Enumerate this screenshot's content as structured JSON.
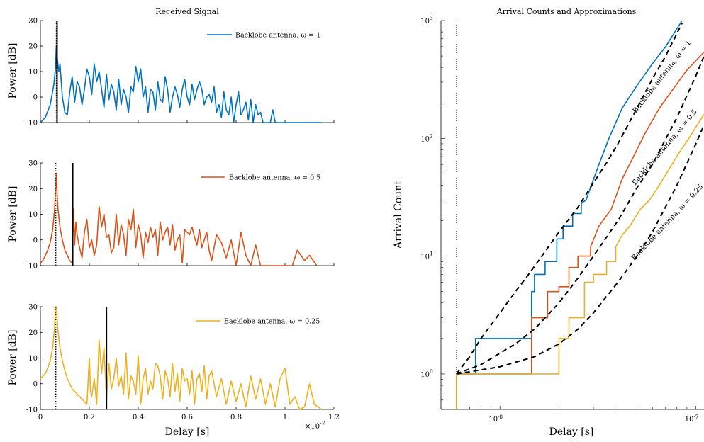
{
  "left": {
    "title": "Received Signal",
    "xlabel": "Delay [s]",
    "ylabel": "Power [dB]",
    "x_exponent_label": "×10",
    "x_exponent_power": "-7",
    "xticks": [
      {
        "v": 0,
        "label": "0"
      },
      {
        "v": 0.2,
        "label": "0.2"
      },
      {
        "v": 0.4,
        "label": "0.4"
      },
      {
        "v": 0.6,
        "label": "0.6"
      },
      {
        "v": 0.8,
        "label": "0.8"
      },
      {
        "v": 1.0,
        "label": "1"
      },
      {
        "v": 1.2,
        "label": "1.2"
      }
    ],
    "yticks": [
      {
        "v": -10,
        "label": "-10"
      },
      {
        "v": 0,
        "label": "0"
      },
      {
        "v": 10,
        "label": "10"
      },
      {
        "v": 20,
        "label": "20"
      },
      {
        "v": 30,
        "label": "30"
      }
    ]
  },
  "right": {
    "title": "Arrival Counts and Approximations",
    "xlabel": "Delay [s]",
    "ylabel": "Arrival Count",
    "xticks": [
      {
        "v": 1e-08,
        "base": "10",
        "exp": "-8"
      },
      {
        "v": 1e-07,
        "base": "10",
        "exp": "-7"
      }
    ],
    "yticks": [
      {
        "v": 1,
        "base": "10",
        "exp": "0"
      },
      {
        "v": 10,
        "base": "10",
        "exp": "1"
      },
      {
        "v": 100,
        "base": "10",
        "exp": "2"
      },
      {
        "v": 1000,
        "base": "10",
        "exp": "3"
      }
    ]
  },
  "chart_data": [
    {
      "type": "line",
      "panel": "top-left",
      "title": "Received Signal",
      "xlabel": "",
      "ylabel": "Power [dB]",
      "x_scale": 1e-07,
      "xlim": [
        0,
        1.2
      ],
      "ylim": [
        -10,
        30
      ],
      "color": "#0072BD",
      "legend": {
        "label": "Backlobe antenna, ω = 1",
        "position": "top-right"
      },
      "vline_dotted": 0.065,
      "vline_solid": 0.068,
      "x": [
        0.0,
        0.02,
        0.04,
        0.055,
        0.062,
        0.065,
        0.07,
        0.075,
        0.08,
        0.09,
        0.1,
        0.11,
        0.12,
        0.13,
        0.14,
        0.15,
        0.16,
        0.17,
        0.18,
        0.19,
        0.2,
        0.21,
        0.22,
        0.23,
        0.24,
        0.25,
        0.26,
        0.27,
        0.28,
        0.29,
        0.3,
        0.31,
        0.32,
        0.33,
        0.34,
        0.35,
        0.36,
        0.37,
        0.38,
        0.39,
        0.4,
        0.41,
        0.42,
        0.43,
        0.44,
        0.45,
        0.46,
        0.47,
        0.48,
        0.49,
        0.5,
        0.51,
        0.52,
        0.53,
        0.54,
        0.55,
        0.56,
        0.57,
        0.58,
        0.59,
        0.6,
        0.61,
        0.62,
        0.63,
        0.64,
        0.65,
        0.66,
        0.67,
        0.68,
        0.69,
        0.7,
        0.71,
        0.72,
        0.73,
        0.74,
        0.75,
        0.76,
        0.77,
        0.78,
        0.79,
        0.8,
        0.81,
        0.82,
        0.83,
        0.84,
        0.85,
        0.86,
        0.87,
        0.88,
        0.89,
        0.9,
        0.91,
        0.92,
        0.93,
        0.94,
        0.95,
        0.96,
        0.97,
        1.0,
        1.05,
        1.1,
        1.15
      ],
      "y": [
        -10,
        -8,
        -3,
        5,
        12,
        20,
        14,
        10,
        13,
        0,
        -6,
        -7,
        2,
        8,
        -2,
        6,
        4,
        -3,
        3,
        11,
        8,
        1,
        13,
        6,
        10,
        3,
        -4,
        9,
        -1,
        5,
        2,
        -5,
        7,
        -3,
        3,
        0,
        -6,
        4,
        2,
        12,
        6,
        11,
        0,
        4,
        -6,
        3,
        2,
        -5,
        6,
        -1,
        -2,
        8,
        3,
        -6,
        0,
        4,
        1,
        -4,
        3,
        7,
        0,
        -3,
        5,
        -1,
        3,
        6,
        3,
        -3,
        0,
        1,
        -2,
        4,
        -6,
        -3,
        -8,
        2,
        -5,
        -7,
        0,
        -10,
        -3,
        2,
        -7,
        -5,
        -2,
        -9,
        -1,
        -10,
        -3,
        -7,
        -6,
        -10,
        -10,
        -10,
        -10,
        -5,
        -10,
        -10,
        -10,
        -10,
        -10,
        -10
      ]
    },
    {
      "type": "line",
      "panel": "middle-left",
      "xlabel": "",
      "ylabel": "Power [dB]",
      "x_scale": 1e-07,
      "xlim": [
        0,
        1.2
      ],
      "ylim": [
        -10,
        30
      ],
      "color": "#D95319",
      "legend": {
        "label": "Backlobe antenna, ω = 0.5",
        "position": "top-right"
      },
      "vline_dotted": 0.063,
      "vline_solid": 0.132,
      "x": [
        0.0,
        0.01,
        0.02,
        0.03,
        0.04,
        0.05,
        0.058,
        0.062,
        0.065,
        0.068,
        0.072,
        0.08,
        0.09,
        0.1,
        0.11,
        0.12,
        0.13,
        0.135,
        0.14,
        0.145,
        0.15,
        0.16,
        0.17,
        0.18,
        0.19,
        0.2,
        0.21,
        0.22,
        0.23,
        0.24,
        0.25,
        0.26,
        0.27,
        0.28,
        0.29,
        0.3,
        0.31,
        0.32,
        0.33,
        0.34,
        0.35,
        0.36,
        0.37,
        0.38,
        0.39,
        0.4,
        0.41,
        0.42,
        0.43,
        0.44,
        0.45,
        0.46,
        0.47,
        0.48,
        0.49,
        0.5,
        0.51,
        0.52,
        0.53,
        0.54,
        0.55,
        0.56,
        0.57,
        0.58,
        0.59,
        0.6,
        0.61,
        0.62,
        0.63,
        0.64,
        0.65,
        0.66,
        0.67,
        0.68,
        0.69,
        0.7,
        0.72,
        0.74,
        0.76,
        0.78,
        0.8,
        0.82,
        0.84,
        0.86,
        0.88,
        0.9,
        0.95,
        1.0,
        1.03,
        1.05,
        1.08,
        1.1,
        1.13
      ],
      "y": [
        -9,
        -8,
        -6,
        -4,
        -1,
        4,
        12,
        20,
        26,
        18,
        12,
        5,
        0,
        -4,
        -6,
        -8,
        -9,
        12,
        -2,
        7,
        2,
        -3,
        -7,
        3,
        8,
        -3,
        0,
        -6,
        -2,
        13,
        5,
        10,
        1,
        2,
        -5,
        -3,
        10,
        -2,
        6,
        2,
        -6,
        8,
        4,
        12,
        -3,
        6,
        2,
        -7,
        3,
        -1,
        5,
        1,
        4,
        -6,
        7,
        0,
        3,
        5,
        -2,
        6,
        -4,
        0,
        2,
        -9,
        4,
        3,
        2,
        5,
        1,
        -2,
        4,
        -3,
        0,
        3,
        -4,
        -8,
        2,
        -1,
        -7,
        0,
        -10,
        3,
        -6,
        -10,
        -2,
        -10,
        -10,
        -10,
        -10,
        -4,
        -8,
        -6,
        -10
      ]
    },
    {
      "type": "line",
      "panel": "bottom-left",
      "xlabel": "Delay [s]",
      "ylabel": "Power [dB]",
      "x_scale": 1e-07,
      "xlim": [
        0,
        1.2
      ],
      "ylim": [
        -10,
        30
      ],
      "color": "#EDB120",
      "legend": {
        "label": "Backlobe antenna, ω = 0.25",
        "position": "top-right"
      },
      "vline_dotted": 0.063,
      "vline_solid": 0.27,
      "x": [
        0.0,
        0.01,
        0.02,
        0.03,
        0.04,
        0.05,
        0.058,
        0.062,
        0.066,
        0.07,
        0.08,
        0.09,
        0.1,
        0.11,
        0.12,
        0.13,
        0.14,
        0.15,
        0.16,
        0.17,
        0.18,
        0.19,
        0.2,
        0.205,
        0.21,
        0.22,
        0.23,
        0.24,
        0.25,
        0.26,
        0.27,
        0.28,
        0.29,
        0.3,
        0.31,
        0.32,
        0.33,
        0.34,
        0.35,
        0.36,
        0.37,
        0.38,
        0.39,
        0.4,
        0.41,
        0.42,
        0.43,
        0.44,
        0.45,
        0.46,
        0.47,
        0.48,
        0.49,
        0.5,
        0.51,
        0.52,
        0.53,
        0.54,
        0.55,
        0.56,
        0.57,
        0.58,
        0.59,
        0.6,
        0.61,
        0.62,
        0.63,
        0.64,
        0.65,
        0.66,
        0.67,
        0.68,
        0.69,
        0.7,
        0.72,
        0.74,
        0.76,
        0.78,
        0.8,
        0.82,
        0.84,
        0.86,
        0.88,
        0.9,
        0.92,
        0.94,
        0.96,
        0.98,
        1.0,
        1.02,
        1.04,
        1.06,
        1.08,
        1.1,
        1.12,
        1.15
      ],
      "y": [
        2,
        3,
        4,
        6,
        9,
        14,
        22,
        30,
        30,
        22,
        14,
        9,
        5,
        2,
        0,
        -2,
        -3,
        -4,
        -5,
        -6,
        -7,
        -8,
        10,
        -3,
        -5,
        2,
        -8,
        17,
        4,
        14,
        -6,
        8,
        -2,
        2,
        10,
        -1,
        3,
        -4,
        12,
        -6,
        3,
        1,
        -4,
        11,
        -8,
        2,
        6,
        -4,
        1,
        -2,
        8,
        7,
        3,
        -6,
        5,
        2,
        -5,
        8,
        -3,
        4,
        -7,
        6,
        1,
        2,
        -4,
        5,
        -8,
        2,
        4,
        -3,
        7,
        -6,
        3,
        5,
        -5,
        2,
        -8,
        1,
        -7,
        0,
        -9,
        3,
        -6,
        2,
        -8,
        0,
        -9,
        2,
        6,
        -8,
        -5,
        -10,
        -9,
        0,
        -8,
        -10
      ]
    },
    {
      "type": "line",
      "panel": "right",
      "title": "Arrival Counts and Approximations",
      "xlabel": "Delay [s]",
      "ylabel": "Arrival Count",
      "x_log": true,
      "y_log": true,
      "xlim": [
        5e-09,
        1.1e-07
      ],
      "ylim": [
        0.5,
        1000
      ],
      "vline_dotted": 6e-09,
      "series": [
        {
          "name": "Backlobe antenna, ω = 1",
          "color": "#0072BD",
          "style": "step",
          "x": [
            6e-09,
            6e-09,
            7.5e-09,
            7.5e-09,
            1.45e-08,
            1.45e-08,
            1.5e-08,
            1.5e-08,
            1.7e-08,
            1.7e-08,
            1.95e-08,
            1.95e-08,
            2.1e-08,
            2.1e-08,
            2.35e-08,
            2.35e-08,
            2.6e-08,
            2.6e-08,
            2.75e-08,
            3.2e-08,
            3.6e-08,
            4.2e-08,
            5e-08,
            6e-08,
            7e-08,
            8.5e-08
          ],
          "y": [
            0.5,
            1,
            1,
            2,
            2,
            5,
            5,
            7,
            7,
            9,
            9,
            14,
            14,
            18,
            18,
            23,
            23,
            28,
            30,
            60,
            100,
            180,
            280,
            430,
            600,
            1000
          ]
        },
        {
          "name": "Backlobe antenna, ω = 0.5",
          "color": "#D95319",
          "style": "step",
          "x": [
            6e-09,
            6e-09,
            1.45e-08,
            1.45e-08,
            1.75e-08,
            1.75e-08,
            2e-08,
            2e-08,
            2.25e-08,
            2.25e-08,
            2.5e-08,
            2.5e-08,
            2.9e-08,
            2.9e-08,
            3.2e-08,
            3.7e-08,
            4.2e-08,
            4.8e-08,
            5.5e-08,
            6.5e-08,
            7.5e-08,
            9e-08,
            1.1e-07
          ],
          "y": [
            0.5,
            1,
            1,
            3,
            3,
            5,
            5,
            5.5,
            5.5,
            8,
            8,
            10,
            10,
            12,
            18,
            25,
            45,
            70,
            110,
            180,
            250,
            380,
            540
          ]
        },
        {
          "name": "Backlobe antenna, ω = 0.25",
          "color": "#EDB120",
          "style": "step",
          "x": [
            6e-09,
            6e-09,
            2e-08,
            2e-08,
            2.25e-08,
            2.25e-08,
            2.7e-08,
            2.7e-08,
            3e-08,
            3e-08,
            3.5e-08,
            3.5e-08,
            3.9e-08,
            3.9e-08,
            4.2e-08,
            4.6e-08,
            5.2e-08,
            5.8e-08,
            6.5e-08,
            7.3e-08,
            8.2e-08,
            9.2e-08,
            1.1e-07
          ],
          "y": [
            0.5,
            1,
            1,
            2,
            2,
            3,
            3,
            6,
            6,
            7,
            7,
            9,
            9,
            12,
            15,
            18,
            25,
            30,
            40,
            55,
            75,
            100,
            160
          ]
        },
        {
          "name": "",
          "color": "#000000",
          "style": "dashed",
          "x": [
            6e-09,
            7e-09,
            8e-09,
            9e-09,
            1e-08,
            1.2e-08,
            1.4e-08,
            1.6e-08,
            1.8e-08,
            2e-08,
            2.5e-08,
            3e-08,
            3.5e-08,
            4e-08,
            5e-08,
            6e-08,
            7e-08,
            8.5e-08
          ],
          "y": [
            1,
            1.4,
            2,
            2.6,
            3.3,
            5,
            7,
            9.5,
            12.5,
            16,
            26,
            42,
            62,
            90,
            180,
            320,
            500,
            950
          ]
        },
        {
          "name": "",
          "color": "#000000",
          "style": "dashed",
          "x": [
            6e-09,
            8e-09,
            1e-08,
            1.2e-08,
            1.5e-08,
            2e-08,
            2.5e-08,
            3e-08,
            4e-08,
            5e-08,
            6e-08,
            8e-08,
            1e-07,
            1.1e-07
          ],
          "y": [
            1,
            1.2,
            1.5,
            1.8,
            2.4,
            4,
            6.5,
            10,
            20,
            38,
            60,
            150,
            340,
            500
          ]
        },
        {
          "name": "",
          "color": "#000000",
          "style": "dashed",
          "x": [
            6e-09,
            1e-08,
            1.5e-08,
            2e-08,
            2.5e-08,
            3e-08,
            4e-08,
            5e-08,
            6e-08,
            8e-08,
            1e-07,
            1.1e-07
          ],
          "y": [
            1,
            1.15,
            1.4,
            1.8,
            2.4,
            3.3,
            6,
            10,
            16,
            40,
            90,
            130
          ]
        }
      ],
      "annotations": [
        {
          "text": "Backlobe antenna, ω = 1"
        },
        {
          "text": "Backlobe antenna, ω = 0.5"
        },
        {
          "text": "Backlobe antenna, ω = 0.25"
        }
      ]
    }
  ]
}
